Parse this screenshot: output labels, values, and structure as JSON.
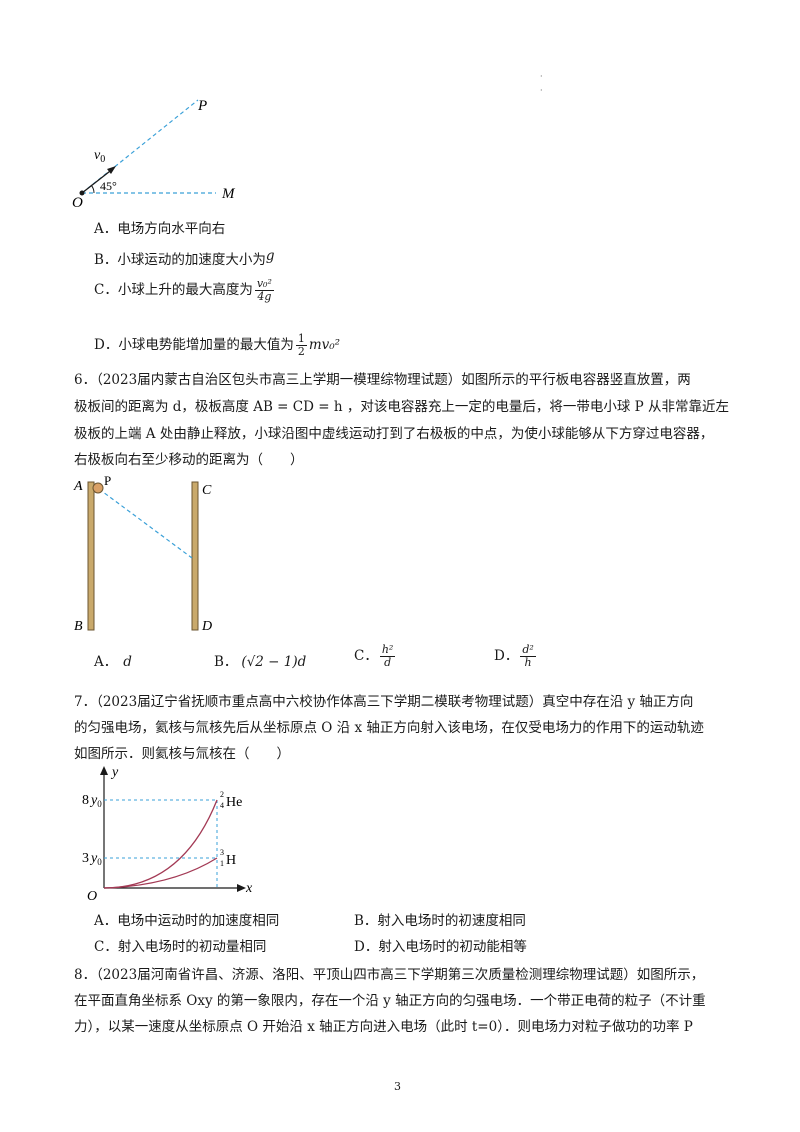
{
  "fig1": {
    "P": "P",
    "v0": "v",
    "v0_sub": "0",
    "angle": "45°",
    "O": "O",
    "M": "M"
  },
  "q5": {
    "A": "A．电场方向水平向右",
    "B_text": "B．小球运动的加速度大小为",
    "B_expr": "g",
    "C_text": "C．小球上升的最大高度为",
    "C_num": "v₀²",
    "C_den": "4g",
    "D_text": "D．小球电势能增加量的最大值为",
    "D_num": "1",
    "D_den": "2",
    "D_expr": "mv₀²"
  },
  "q6": {
    "line1": "6．（2023届内蒙古自治区包头市高三上学期一模理综物理试题）如图所示的平行板电容器竖直放置，两",
    "line2": "极板间的距离为 d，极板高度 AB = CD = h ，对该电容器充上一定的电量后，将一带电小球 P 从非常靠近左",
    "line3": "极板的上端 A 处由静止释放，小球沿图中虚线运动打到了右极板的中点，为使小球能够从下方穿过电容器，",
    "line4": "右极板向右至少移动的距离为（　　）",
    "fig": {
      "A": "A",
      "P": "P",
      "C": "C",
      "B": "B",
      "D": "D"
    },
    "optA_label": "A．",
    "optA": "d",
    "optB_label": "B．",
    "optB": "(√2 − 1)d",
    "optC_label": "C．",
    "optC_num": "h²",
    "optC_den": "d",
    "optD_label": "D．",
    "optD_num": "d²",
    "optD_den": "h"
  },
  "q7": {
    "line1": "7．（2023届辽宁省抚顺市重点高中六校协作体高三下学期二模联考物理试题）真空中存在沿 y 轴正方向",
    "line2": "的匀强电场，氦核与氚核先后从坐标原点 O 沿 x 轴正方向射入该电场，在仅受电场力的作用下的运动轨迹",
    "line3": "如图所示．则氦核与氚核在（　　）",
    "fig": {
      "y": "y",
      "x": "x",
      "O": "O",
      "t8": "8",
      "t3": "3",
      "y0": "y",
      "y0_sub": "0",
      "he_sup": "2",
      "he_sub": "4",
      "he": "He",
      "h_sup": "3",
      "h_sub": "1",
      "h": "H"
    },
    "optA": "A．电场中运动时的加速度相同",
    "optB": "B．射入电场时的初速度相同",
    "optC": "C．射入电场时的初动量相同",
    "optD": "D．射入电场时的初动能相等"
  },
  "q8": {
    "line1": "8．（2023届河南省许昌、济源、洛阳、平顶山四市高三下学期第三次质量检测理综物理试题）如图所示，",
    "line2": "在平面直角坐标系 Oxy 的第一象限内，存在一个沿 y 轴正方向的匀强电场．一个带正电荷的粒子（不计重",
    "line3": "力），以某一速度从坐标原点 O 开始沿 x 轴正方向进入电场（此时 t=0）．则电场力对粒子做功的功率 P"
  },
  "page_number": "3",
  "colors": {
    "dashed": "#3aa0d8",
    "plate": "#c9a96b",
    "ball": "#d9a066",
    "curve": "#a33a55"
  }
}
